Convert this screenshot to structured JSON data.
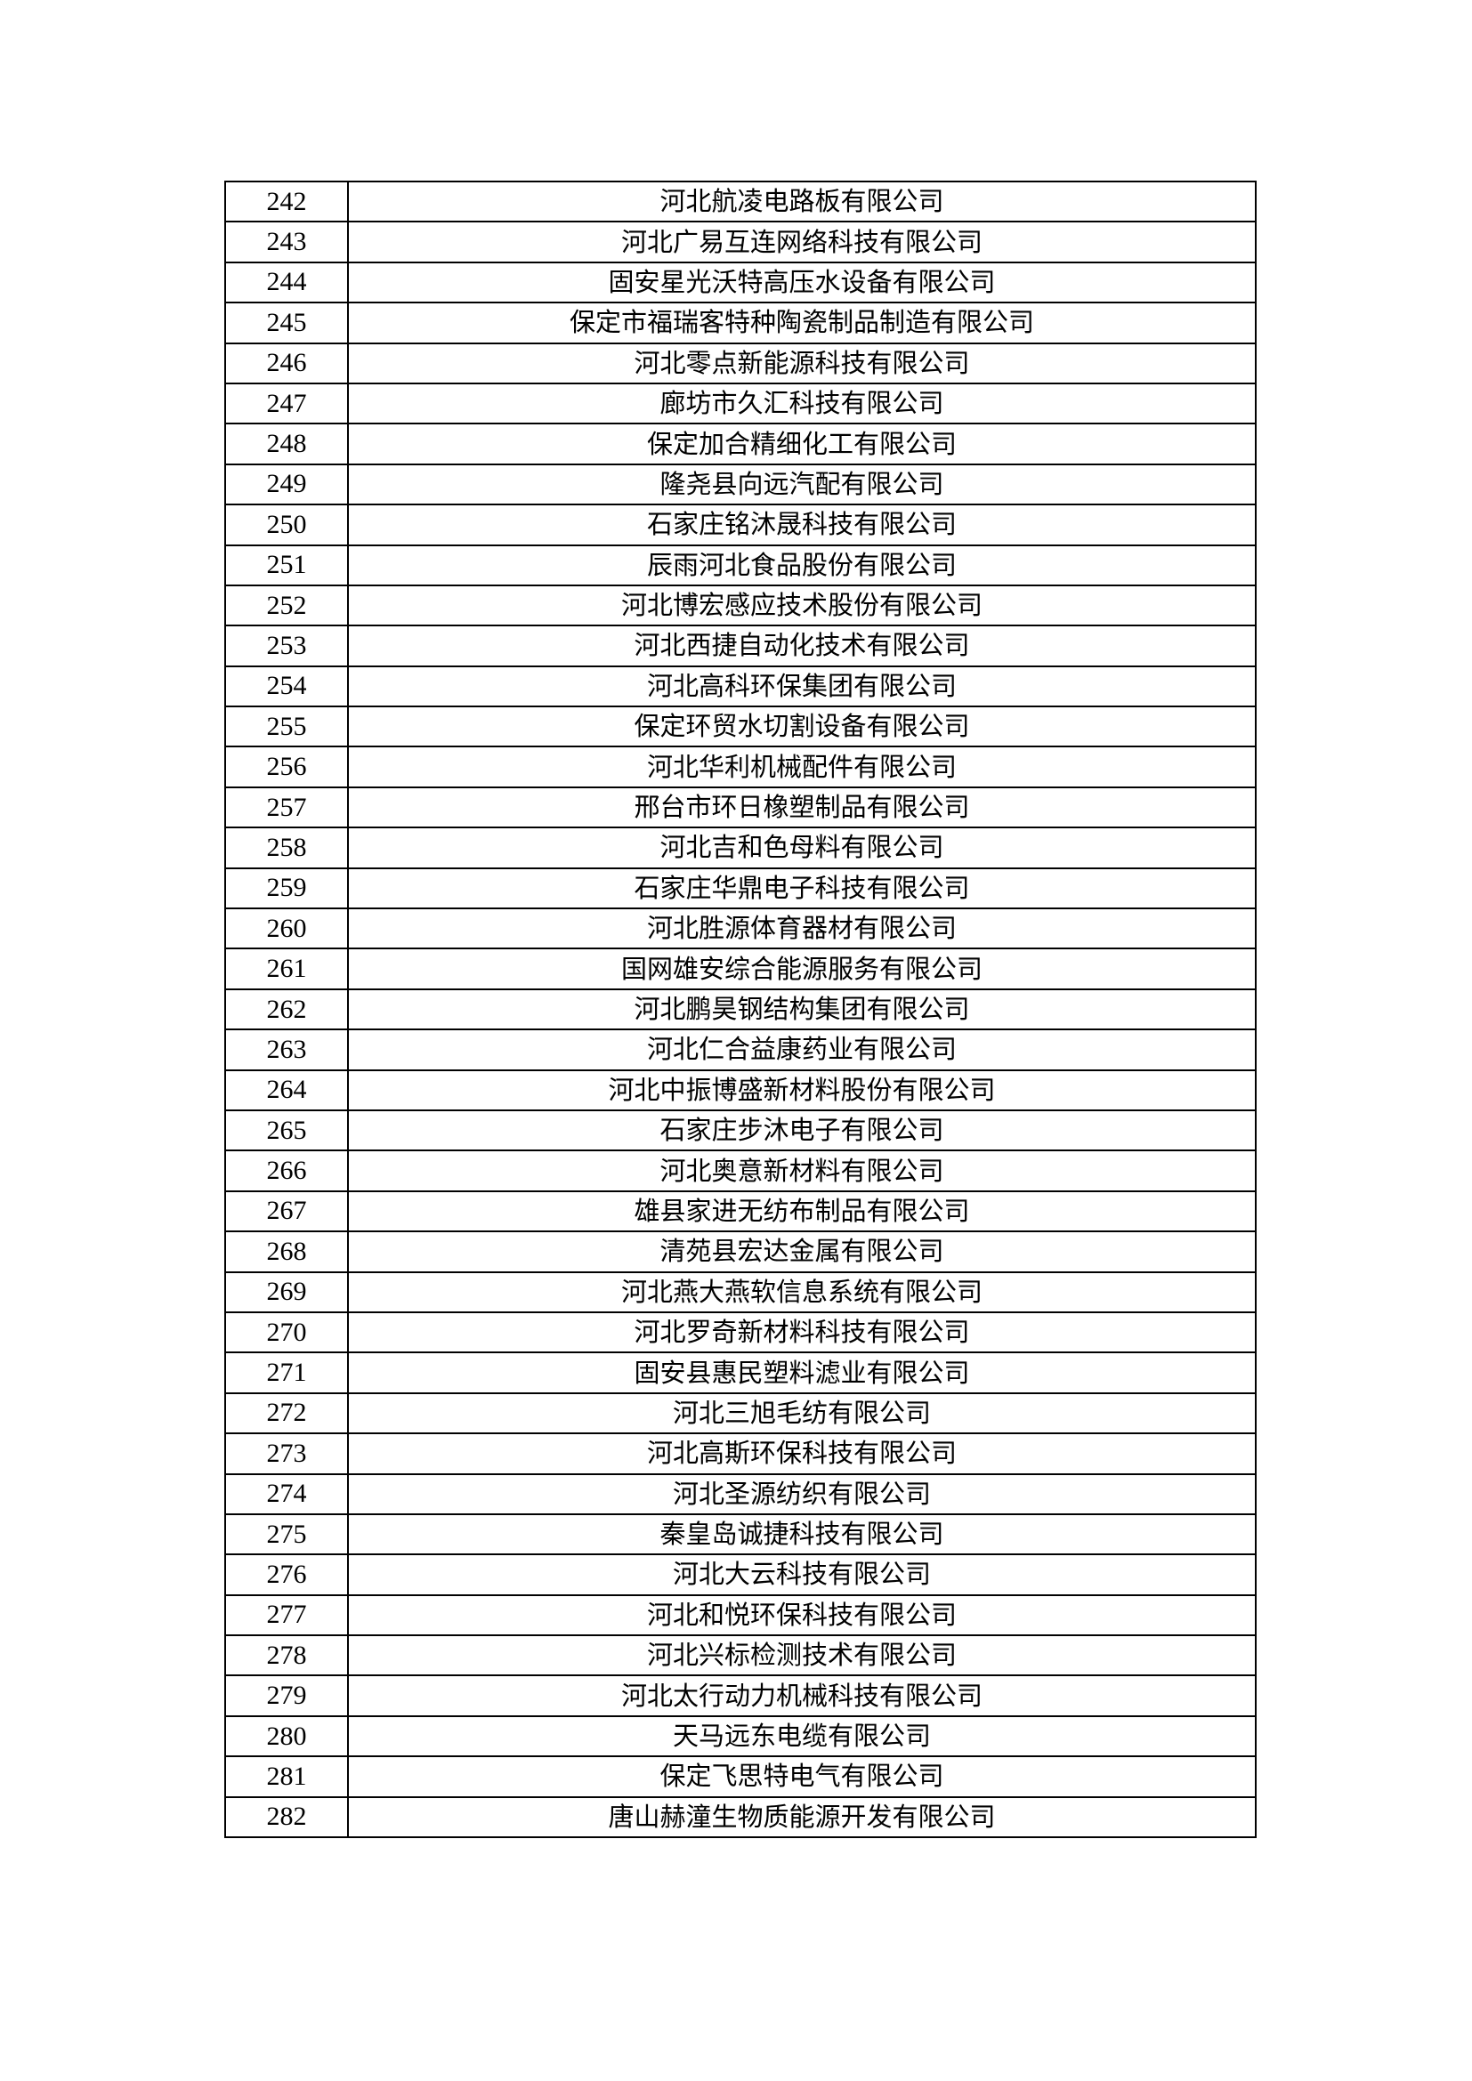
{
  "table": {
    "rows": [
      {
        "no": "242",
        "name": "河北航凌电路板有限公司"
      },
      {
        "no": "243",
        "name": "河北广易互连网络科技有限公司"
      },
      {
        "no": "244",
        "name": "固安星光沃特高压水设备有限公司"
      },
      {
        "no": "245",
        "name": "保定市福瑞客特种陶瓷制品制造有限公司"
      },
      {
        "no": "246",
        "name": "河北零点新能源科技有限公司"
      },
      {
        "no": "247",
        "name": "廊坊市久汇科技有限公司"
      },
      {
        "no": "248",
        "name": "保定加合精细化工有限公司"
      },
      {
        "no": "249",
        "name": "隆尧县向远汽配有限公司"
      },
      {
        "no": "250",
        "name": "石家庄铭沐晟科技有限公司"
      },
      {
        "no": "251",
        "name": "辰雨河北食品股份有限公司"
      },
      {
        "no": "252",
        "name": "河北博宏感应技术股份有限公司"
      },
      {
        "no": "253",
        "name": "河北西捷自动化技术有限公司"
      },
      {
        "no": "254",
        "name": "河北高科环保集团有限公司"
      },
      {
        "no": "255",
        "name": "保定环贸水切割设备有限公司"
      },
      {
        "no": "256",
        "name": "河北华利机械配件有限公司"
      },
      {
        "no": "257",
        "name": "邢台市环日橡塑制品有限公司"
      },
      {
        "no": "258",
        "name": "河北吉和色母料有限公司"
      },
      {
        "no": "259",
        "name": "石家庄华鼎电子科技有限公司"
      },
      {
        "no": "260",
        "name": "河北胜源体育器材有限公司"
      },
      {
        "no": "261",
        "name": "国网雄安综合能源服务有限公司"
      },
      {
        "no": "262",
        "name": "河北鹏昊钢结构集团有限公司"
      },
      {
        "no": "263",
        "name": "河北仁合益康药业有限公司"
      },
      {
        "no": "264",
        "name": "河北中振博盛新材料股份有限公司"
      },
      {
        "no": "265",
        "name": "石家庄步沐电子有限公司"
      },
      {
        "no": "266",
        "name": "河北奥意新材料有限公司"
      },
      {
        "no": "267",
        "name": "雄县家进无纺布制品有限公司"
      },
      {
        "no": "268",
        "name": "清苑县宏达金属有限公司"
      },
      {
        "no": "269",
        "name": "河北燕大燕软信息系统有限公司"
      },
      {
        "no": "270",
        "name": "河北罗奇新材料科技有限公司"
      },
      {
        "no": "271",
        "name": "固安县惠民塑料滤业有限公司"
      },
      {
        "no": "272",
        "name": "河北三旭毛纺有限公司"
      },
      {
        "no": "273",
        "name": "河北高斯环保科技有限公司"
      },
      {
        "no": "274",
        "name": "河北圣源纺织有限公司"
      },
      {
        "no": "275",
        "name": "秦皇岛诚捷科技有限公司"
      },
      {
        "no": "276",
        "name": "河北大云科技有限公司"
      },
      {
        "no": "277",
        "name": "河北和悦环保科技有限公司"
      },
      {
        "no": "278",
        "name": "河北兴标检测技术有限公司"
      },
      {
        "no": "279",
        "name": "河北太行动力机械科技有限公司"
      },
      {
        "no": "280",
        "name": "天马远东电缆有限公司"
      },
      {
        "no": "281",
        "name": "保定飞思特电气有限公司"
      },
      {
        "no": "282",
        "name": "唐山赫潼生物质能源开发有限公司"
      }
    ]
  }
}
